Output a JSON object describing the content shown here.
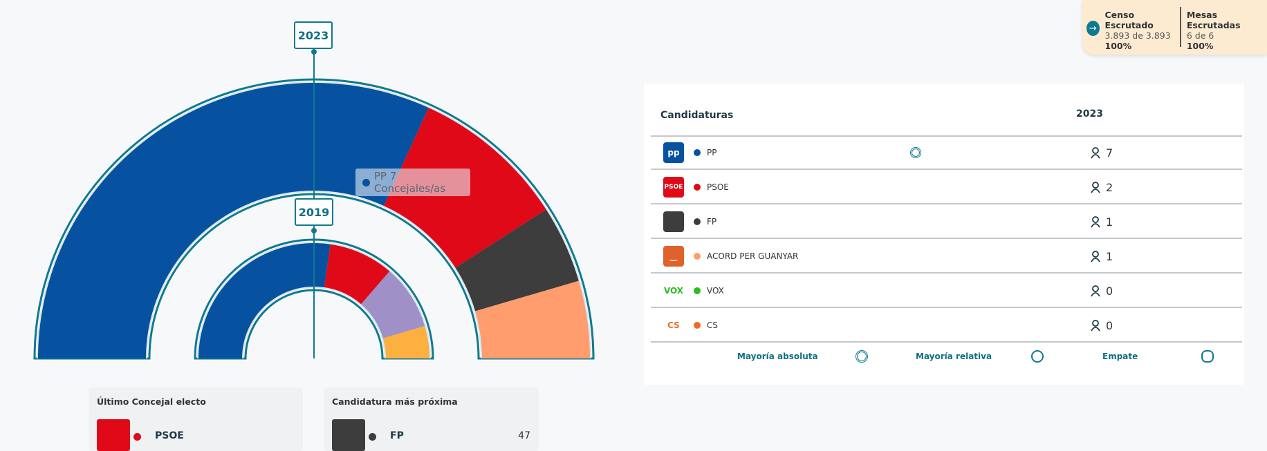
{
  "chart_data": {
    "type": "hemicycle",
    "total_seats": 11,
    "series": [
      {
        "name": "2023",
        "parties": [
          {
            "party": "PP",
            "seats": 7,
            "color": "#0651a0"
          },
          {
            "party": "PSOE",
            "seats": 2,
            "color": "#e00918"
          },
          {
            "party": "FP",
            "seats": 1,
            "color": "#3d3d3d"
          },
          {
            "party": "ACORD PER GUANYAR",
            "seats": 1,
            "color": "#ff9d6e"
          }
        ]
      },
      {
        "name": "2019",
        "parties": [
          {
            "party": "PP",
            "seats": 6,
            "color": "#0651a0"
          },
          {
            "party": "PSOE",
            "seats": 2,
            "color": "#e00918"
          },
          {
            "party": "Other",
            "seats": 2,
            "color": "#a090c8"
          },
          {
            "party": "Other",
            "seats": 1,
            "color": "#fbb040"
          }
        ]
      }
    ]
  },
  "labels": {
    "year_outer": "2023",
    "year_inner": "2019"
  },
  "tooltip": {
    "party": "PP",
    "text": "PP 7 Concejales/as",
    "color": "#0651a0"
  },
  "status": {
    "censo_title": "Censo Escrutado",
    "censo_value": "3.893 de 3.893",
    "censo_pct": "100%",
    "mesas_title": "Mesas Escrutadas",
    "mesas_value": "6 de 6",
    "mesas_pct": "100%"
  },
  "table": {
    "col_party": "Candidaturas",
    "col_year": "2023",
    "rows": [
      {
        "logo": "pp",
        "name": "PP",
        "color": "#0651a0",
        "seats": "7",
        "logo_bg": "#0651a0",
        "logo_text": "pp"
      },
      {
        "logo": "psoe",
        "name": "PSOE",
        "color": "#e00918",
        "seats": "2",
        "logo_bg": "#e00918",
        "logo_text": "PSOE"
      },
      {
        "logo": "fp",
        "name": "FP",
        "color": "#3d3d3d",
        "seats": "1",
        "logo_bg": "#3d3d3d",
        "logo_text": ""
      },
      {
        "logo": "acord",
        "name": "ACORD PER GUANYAR",
        "color": "#ff9d6e",
        "seats": "1",
        "logo_bg": "#e0622b",
        "logo_text": "‿"
      },
      {
        "logo": "vox",
        "name": "VOX",
        "color": "#2bbd20",
        "seats": "0",
        "logo_bg": "transparent",
        "logo_text": "VOX"
      },
      {
        "logo": "cs",
        "name": "CS",
        "color": "#f26a21",
        "seats": "0",
        "logo_bg": "transparent",
        "logo_text": "CS"
      }
    ],
    "legend": {
      "absolute": "Mayoría absoluta",
      "relative": "Mayoría relativa",
      "tie": "Empate"
    }
  },
  "cards": {
    "last": {
      "title": "Último Concejal electo",
      "party": "PSOE",
      "color": "#e00918"
    },
    "next": {
      "title": "Candidatura más próxima",
      "party": "FP",
      "color": "#3d3d3d",
      "value": "47"
    }
  }
}
